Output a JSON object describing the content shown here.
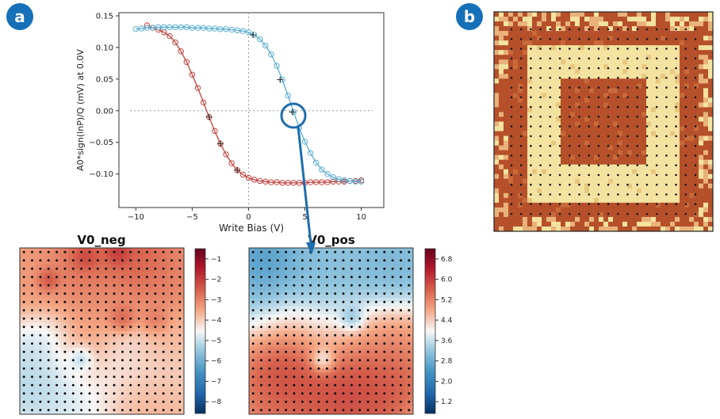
{
  "panels": {
    "a_label": "a",
    "b_label": "b"
  },
  "colors": {
    "badge": "#1570b8",
    "neg_series": "#c0433e",
    "pos_series": "#5aaed0",
    "annotation": "#1f6db0",
    "rust": "#b5502a",
    "cream": "#f4e3a0"
  },
  "chart_data": [
    {
      "type": "line",
      "title": "",
      "xlabel": "Write Bias (V)",
      "ylabel": "A0*sign(lnP)/Q (mV) at 0.0V",
      "xlim": [
        -11.5,
        12
      ],
      "ylim": [
        -0.153,
        0.155
      ],
      "xticks": [
        -10,
        -5,
        0,
        5,
        10
      ],
      "yticks": [
        -0.1,
        -0.05,
        0.0,
        0.05,
        0.1,
        0.15
      ],
      "xtick_labels": [
        "−10",
        "−5",
        "0",
        "5",
        "10"
      ],
      "ytick_labels": [
        "−0.10",
        "−0.05",
        "0.00",
        "0.05",
        "0.10",
        "0.15"
      ],
      "grid": false,
      "reference_lines": {
        "x": 0,
        "y": 0,
        "style": "dotted"
      },
      "series": [
        {
          "color": "#c0433e",
          "x": [
            -9,
            -8.5,
            -8,
            -7.5,
            -7,
            -6.5,
            -6,
            -5.5,
            -5,
            -4.5,
            -4,
            -3.5,
            -3,
            -2.5,
            -2,
            -1.5,
            -1,
            -0.5,
            0,
            0.5,
            1,
            1.5,
            2,
            2.5,
            3,
            3.5,
            4,
            4.5,
            5,
            5.5,
            6,
            6.5,
            7,
            7.5,
            8,
            8.5,
            9,
            9.5,
            10
          ],
          "y": [
            0.135,
            0.131,
            0.128,
            0.124,
            0.118,
            0.108,
            0.094,
            0.077,
            0.057,
            0.036,
            0.013,
            -0.01,
            -0.032,
            -0.052,
            -0.069,
            -0.083,
            -0.094,
            -0.101,
            -0.106,
            -0.109,
            -0.111,
            -0.112,
            -0.113,
            -0.113,
            -0.114,
            -0.114,
            -0.114,
            -0.114,
            -0.114,
            -0.113,
            -0.113,
            -0.113,
            -0.113,
            -0.112,
            -0.112,
            -0.112,
            -0.111,
            -0.111,
            -0.11
          ],
          "marked_x": [
            -3.5,
            -2.5,
            -1
          ]
        },
        {
          "color": "#5aaed0",
          "x": [
            -10,
            -9.5,
            -9,
            -8.5,
            -8,
            -7.5,
            -7,
            -6.5,
            -6,
            -5.5,
            -5,
            -4.5,
            -4,
            -3.5,
            -3,
            -2.5,
            -2,
            -1.5,
            -1,
            -0.5,
            0,
            0.5,
            1,
            1.5,
            2,
            2.5,
            3,
            3.5,
            4,
            4.5,
            5,
            5.5,
            6,
            6.5,
            7,
            7.5,
            8,
            8.5,
            9,
            9.5,
            10
          ],
          "y": [
            0.129,
            0.13,
            0.131,
            0.131,
            0.132,
            0.132,
            0.132,
            0.132,
            0.132,
            0.132,
            0.131,
            0.131,
            0.131,
            0.13,
            0.13,
            0.129,
            0.129,
            0.128,
            0.127,
            0.126,
            0.124,
            0.12,
            0.113,
            0.103,
            0.089,
            0.071,
            0.049,
            0.024,
            -0.002,
            -0.027,
            -0.049,
            -0.067,
            -0.082,
            -0.093,
            -0.1,
            -0.105,
            -0.108,
            -0.11,
            -0.111,
            -0.112,
            -0.112
          ],
          "marked_x": [
            0.4,
            2.8,
            3.9
          ]
        }
      ]
    },
    {
      "type": "heatmap",
      "title": "V0_neg",
      "colorbar_ticks": [
        "−1",
        "−2",
        "−3",
        "−4",
        "−5",
        "−6",
        "−7",
        "−8"
      ],
      "colorbar_range": [
        -8,
        -1
      ],
      "grid_size": 20,
      "blobs": [
        {
          "x": 2.5,
          "y": 2.5,
          "v": -3.3,
          "s": 3.5
        },
        {
          "x": 8,
          "y": 1.5,
          "v": -2.5,
          "s": 2.5
        },
        {
          "x": 14,
          "y": 1.2,
          "v": -2.4,
          "s": 2.5
        },
        {
          "x": 17.5,
          "y": 3.5,
          "v": -3.0,
          "s": 3
        },
        {
          "x": 10,
          "y": 5.5,
          "v": -3.2,
          "s": 3
        },
        {
          "x": 3.5,
          "y": 3.8,
          "v": -1.8,
          "s": 0.8
        },
        {
          "x": 12,
          "y": 0.6,
          "v": -1.5,
          "s": 0.9
        },
        {
          "x": 8,
          "y": 1.2,
          "v": -1.7,
          "s": 0.9
        },
        {
          "x": 12.5,
          "y": 8.5,
          "v": -2.2,
          "s": 1.0
        },
        {
          "x": 16.5,
          "y": 8.8,
          "v": -2.5,
          "s": 1.0
        },
        {
          "x": 3,
          "y": 12.5,
          "v": -5.0,
          "s": 2.5
        },
        {
          "x": 8,
          "y": 12.0,
          "v": -3.2,
          "s": 2.5
        },
        {
          "x": 2,
          "y": 16.5,
          "v": -5.3,
          "s": 3
        },
        {
          "x": 7.5,
          "y": 13.3,
          "v": -6.6,
          "s": 0.9
        },
        {
          "x": 11,
          "y": 14.5,
          "v": -4.6,
          "s": 3
        },
        {
          "x": 16,
          "y": 14,
          "v": -4.2,
          "s": 3
        },
        {
          "x": 15,
          "y": 18,
          "v": -3.6,
          "s": 3
        },
        {
          "x": 6,
          "y": 18.5,
          "v": -4.8,
          "s": 3
        },
        {
          "x": 17.5,
          "y": 11,
          "v": -3.6,
          "s": 2
        }
      ],
      "base_value": -4.0
    },
    {
      "type": "heatmap",
      "title": "V0_pos",
      "colorbar_ticks": [
        "6.8",
        "6.0",
        "5.2",
        "4.4",
        "3.6",
        "2.8",
        "2.0",
        "1.2"
      ],
      "colorbar_range": [
        1.2,
        7.2
      ],
      "grid_size": 20,
      "blobs": [
        {
          "x": 2,
          "y": 1.5,
          "v": 2.5,
          "s": 2.5
        },
        {
          "x": 8,
          "y": 2.5,
          "v": 3.1,
          "s": 3
        },
        {
          "x": 14,
          "y": 3,
          "v": 3.2,
          "s": 3
        },
        {
          "x": 18,
          "y": 2,
          "v": 3.0,
          "s": 3
        },
        {
          "x": 10,
          "y": 6,
          "v": 3.4,
          "s": 3
        },
        {
          "x": 2,
          "y": 6,
          "v": 3.0,
          "s": 3
        },
        {
          "x": 12.5,
          "y": 8.5,
          "v": 2.2,
          "s": 0.9
        },
        {
          "x": 4,
          "y": 11,
          "v": 5.4,
          "s": 3
        },
        {
          "x": 10,
          "y": 11,
          "v": 4.8,
          "s": 3
        },
        {
          "x": 16,
          "y": 11,
          "v": 5.3,
          "s": 3
        },
        {
          "x": 4.5,
          "y": 15,
          "v": 6.4,
          "s": 2.5
        },
        {
          "x": 12,
          "y": 16,
          "v": 6.3,
          "s": 3
        },
        {
          "x": 17,
          "y": 15.5,
          "v": 5.9,
          "s": 2.5
        },
        {
          "x": 8,
          "y": 18.5,
          "v": 5.9,
          "s": 3
        },
        {
          "x": 14.5,
          "y": 18.5,
          "v": 5.9,
          "s": 2.5
        },
        {
          "x": 9,
          "y": 13.5,
          "v": 2.6,
          "s": 0.9
        },
        {
          "x": 3,
          "y": 18,
          "v": 5.6,
          "s": 2.5
        }
      ],
      "base_value": 4.6
    }
  ]
}
